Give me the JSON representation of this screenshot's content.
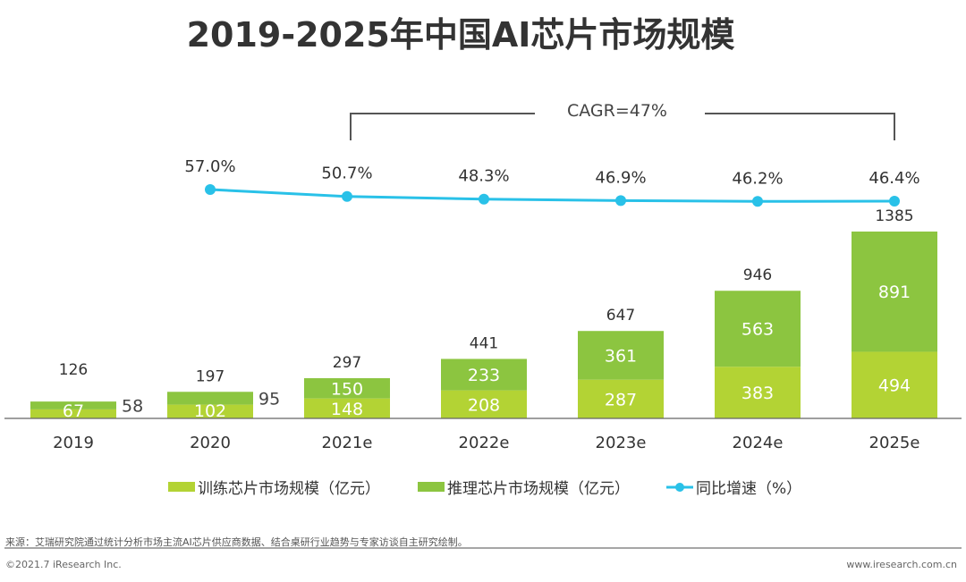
{
  "chart_data": {
    "type": "bar",
    "title": "2019-2025年中国AI芯片市场规模",
    "categories": [
      "2019",
      "2020",
      "2021e",
      "2022e",
      "2023e",
      "2024e",
      "2025e"
    ],
    "stacked": true,
    "series": [
      {
        "name": "训练芯片市场规模（亿元）",
        "type": "bar",
        "color": "#b3d334",
        "values": [
          67,
          102,
          148,
          208,
          287,
          383,
          494
        ]
      },
      {
        "name": "推理芯片市场规模（亿元）",
        "type": "bar",
        "color": "#8cc540",
        "values": [
          58,
          95,
          150,
          233,
          361,
          563,
          891
        ]
      },
      {
        "name": "同比增速（%）",
        "type": "line",
        "color": "#29c1e8",
        "values": [
          null,
          57.0,
          50.7,
          48.3,
          46.9,
          46.2,
          46.4
        ],
        "labels": [
          "",
          "57.0%",
          "50.7%",
          "48.3%",
          "46.9%",
          "46.2%",
          "46.4%"
        ]
      }
    ],
    "totals": [
      126,
      197,
      297,
      441,
      647,
      946,
      1385
    ],
    "annotation": "CAGR=47%",
    "legend_position": "bottom",
    "grid": false
  },
  "footer": {
    "source": "来源：艾瑞研究院通过统计分析市场主流AI芯片供应商数据、结合桌研行业趋势与专家访谈自主研究绘制。",
    "copyright": "©2021.7 iResearch Inc.",
    "website": "www.iresearch.com.cn"
  }
}
